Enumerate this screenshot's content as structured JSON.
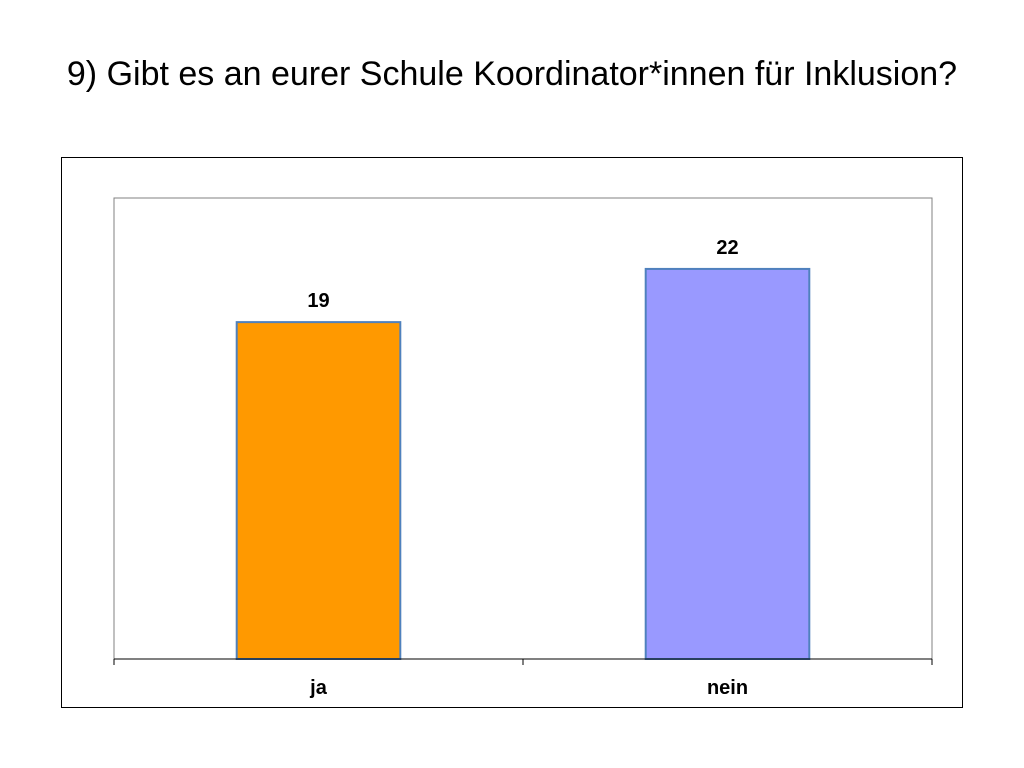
{
  "title": "9) Gibt es an eurer Schule Koordinator*innen für Inklusion?",
  "chart_data": {
    "type": "bar",
    "title": "",
    "xlabel": "",
    "ylabel": "",
    "categories": [
      "ja",
      "nein"
    ],
    "values": [
      19,
      22
    ],
    "colors": [
      "#FF9900",
      "#9999FF"
    ],
    "bar_border_color": "#4F81BD",
    "ylim": [
      0,
      26
    ],
    "grid": false,
    "legend": "none",
    "data_labels": [
      "19",
      "22"
    ]
  }
}
